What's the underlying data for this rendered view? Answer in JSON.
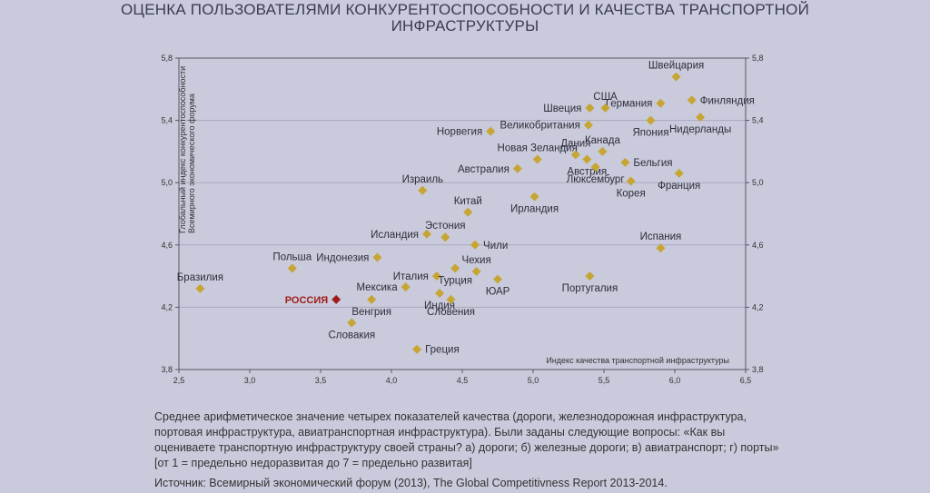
{
  "title_lines": [
    "ОЦЕНКА ПОЛЬЗОВАТЕЛЯМИ КОНКУРЕНТОСПОСОБНОСТИ И КАЧЕСТВА ТРАНСПОРТНОЙ",
    "ИНФРАСТРУКТУРЫ"
  ],
  "notes_text": "Среднее арифметическое значение четырех показателей качества (дороги, железнодорожная инфраструктура, портовая инфраструктура, авиатранспортная инфраструктура). Были заданы следующие вопросы: «Как вы оцениваете транспортную инфраструктуру своей страны? а) дороги; б) железные дороги; в) авиатранспорт; г) порты» [от 1 = предельно недоразвитая до 7 = предельно развитая]",
  "source_text": "Источник: Всемирный экономический форум (2013), The Global Competitivness Report 2013-2014.",
  "colors": {
    "point": "#c6a533",
    "highlight": "#a01c1c",
    "axis": "#555566",
    "grid": "#a9aac0"
  },
  "chart_data": {
    "type": "scatter",
    "xlabel": "Индекс качества транспортной инфраструктуры",
    "ylabel_lines": [
      "Глобальный индекс конкурентоспособности",
      "Всемирного экономического форума"
    ],
    "xlim": [
      2.5,
      6.5
    ],
    "ylim": [
      3.8,
      5.8
    ],
    "x_ticks": [
      "2,5",
      "3,0",
      "3,5",
      "4,0",
      "4,5",
      "5,0",
      "5,5",
      "6,0",
      "6,5"
    ],
    "y_ticks": [
      "3,8",
      "4,2",
      "4,6",
      "5,0",
      "5,4",
      "5,8"
    ],
    "grid": "horizontal",
    "points": [
      {
        "label": "Швейцария",
        "x": 6.01,
        "y": 5.68,
        "anchor": "above"
      },
      {
        "label": "Финляндия",
        "x": 6.12,
        "y": 5.53,
        "anchor": "right"
      },
      {
        "label": "Германия",
        "x": 5.9,
        "y": 5.51,
        "anchor": "left"
      },
      {
        "label": "США",
        "x": 5.51,
        "y": 5.48,
        "anchor": "above"
      },
      {
        "label": "Швеция",
        "x": 5.4,
        "y": 5.48,
        "anchor": "left"
      },
      {
        "label": "Нидерланды",
        "x": 6.18,
        "y": 5.42,
        "anchor": "below"
      },
      {
        "label": "Япония",
        "x": 5.83,
        "y": 5.4,
        "anchor": "below"
      },
      {
        "label": "Великобритания",
        "x": 5.39,
        "y": 5.37,
        "anchor": "left"
      },
      {
        "label": "Норвегия",
        "x": 4.7,
        "y": 5.33,
        "anchor": "left"
      },
      {
        "label": "Канада",
        "x": 5.49,
        "y": 5.2,
        "anchor": "above"
      },
      {
        "label": "Дания",
        "x": 5.3,
        "y": 5.18,
        "anchor": "above"
      },
      {
        "label": "Бельгия",
        "x": 5.65,
        "y": 5.13,
        "anchor": "right"
      },
      {
        "label": "Австрия",
        "x": 5.38,
        "y": 5.15,
        "anchor": "below"
      },
      {
        "label": "Новая Зеландия",
        "x": 5.03,
        "y": 5.15,
        "anchor": "above"
      },
      {
        "label": "Австралия",
        "x": 4.89,
        "y": 5.09,
        "anchor": "left"
      },
      {
        "label": "Люксембург",
        "x": 5.44,
        "y": 5.1,
        "anchor": "below"
      },
      {
        "label": "Франция",
        "x": 6.03,
        "y": 5.06,
        "anchor": "below"
      },
      {
        "label": "Корея",
        "x": 5.69,
        "y": 5.01,
        "anchor": "below"
      },
      {
        "label": "Израиль",
        "x": 4.22,
        "y": 4.95,
        "anchor": "above"
      },
      {
        "label": "Ирландия",
        "x": 5.01,
        "y": 4.91,
        "anchor": "below"
      },
      {
        "label": "Китай",
        "x": 4.54,
        "y": 4.81,
        "anchor": "above"
      },
      {
        "label": "Эстония",
        "x": 4.38,
        "y": 4.65,
        "anchor": "above"
      },
      {
        "label": "Исландия",
        "x": 4.25,
        "y": 4.67,
        "anchor": "left"
      },
      {
        "label": "Чили",
        "x": 4.59,
        "y": 4.6,
        "anchor": "right"
      },
      {
        "label": "Испания",
        "x": 5.9,
        "y": 4.58,
        "anchor": "above"
      },
      {
        "label": "Индонезия",
        "x": 3.9,
        "y": 4.52,
        "anchor": "left"
      },
      {
        "label": "Польша",
        "x": 3.3,
        "y": 4.45,
        "anchor": "above"
      },
      {
        "label": "Италия",
        "x": 4.32,
        "y": 4.4,
        "anchor": "left"
      },
      {
        "label": "Чехия",
        "x": 4.6,
        "y": 4.43,
        "anchor": "above"
      },
      {
        "label": "Турция",
        "x": 4.45,
        "y": 4.45,
        "anchor": "below"
      },
      {
        "label": "Португалия",
        "x": 5.4,
        "y": 4.4,
        "anchor": "below"
      },
      {
        "label": "ЮАР",
        "x": 4.75,
        "y": 4.38,
        "anchor": "below"
      },
      {
        "label": "Мексика",
        "x": 4.1,
        "y": 4.33,
        "anchor": "left"
      },
      {
        "label": "Бразилия",
        "x": 2.65,
        "y": 4.32,
        "anchor": "above"
      },
      {
        "label": "Индия",
        "x": 4.34,
        "y": 4.29,
        "anchor": "below"
      },
      {
        "label": "Словения",
        "x": 4.42,
        "y": 4.25,
        "anchor": "below"
      },
      {
        "label": "Венгрия",
        "x": 3.86,
        "y": 4.25,
        "anchor": "below"
      },
      {
        "label": "РОССИЯ",
        "x": 3.61,
        "y": 4.25,
        "anchor": "left",
        "highlight": true
      },
      {
        "label": "Словакия",
        "x": 3.72,
        "y": 4.1,
        "anchor": "below"
      },
      {
        "label": "Греция",
        "x": 4.18,
        "y": 3.93,
        "anchor": "right"
      }
    ]
  }
}
